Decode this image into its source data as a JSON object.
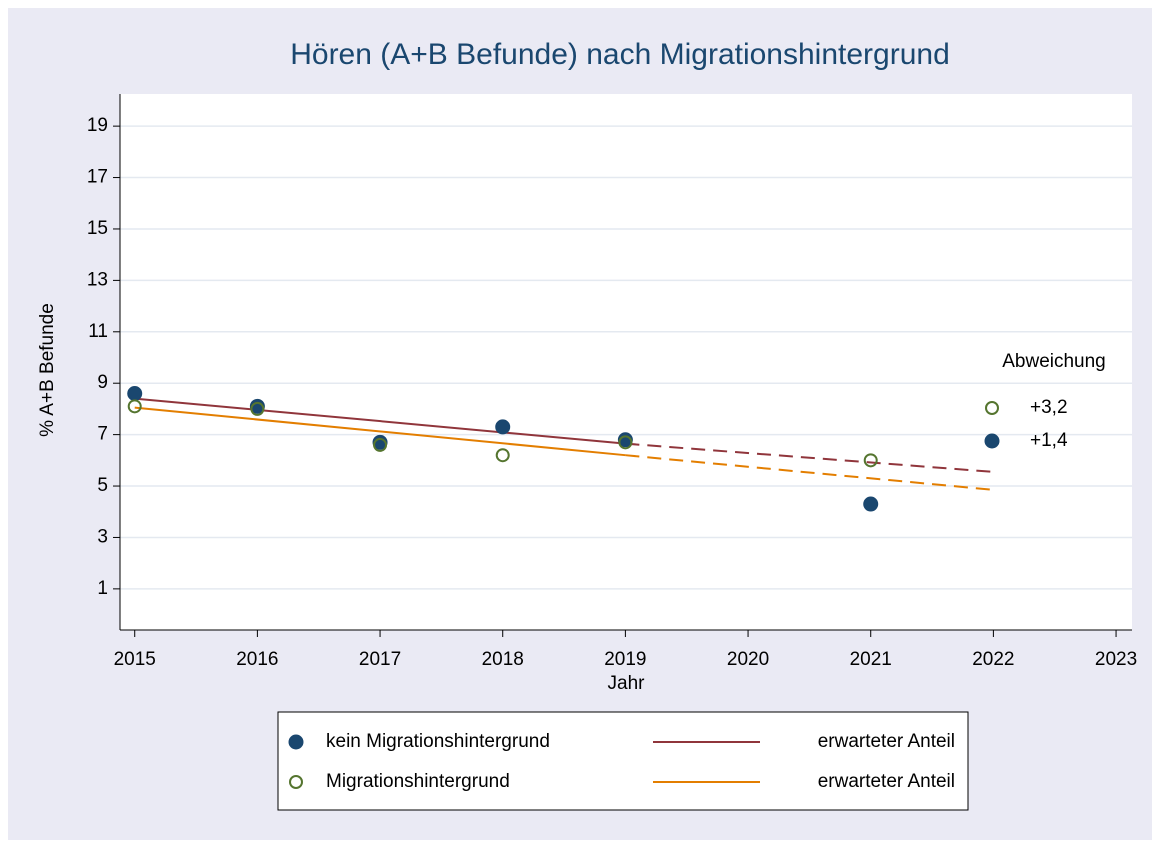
{
  "chart_data": {
    "type": "scatter",
    "title": "Hören (A+B Befunde) nach Migrationshintergrund",
    "x_label": "Jahr",
    "y_label": "% A+B Befunde",
    "x": [
      2015,
      2016,
      2017,
      2018,
      2019,
      2021
    ],
    "series": [
      {
        "name": "kein Migrationshintergrund",
        "color": "#1a476f",
        "marker": "filled",
        "values": [
          8.6,
          8.1,
          6.7,
          7.3,
          6.8,
          4.3
        ]
      },
      {
        "name": "Migrationshintergrund",
        "color": "#55752f",
        "marker": "hollow",
        "values": [
          8.1,
          8.0,
          6.6,
          6.2,
          6.7,
          6.0
        ]
      }
    ],
    "fit_lines": [
      {
        "name": "erwarteter Anteil",
        "color": "#90353b",
        "fit": {
          "x": [
            2015,
            2019
          ],
          "values": [
            8.4,
            6.65
          ]
        },
        "projection": {
          "x": [
            2019,
            2022
          ],
          "values": [
            6.65,
            5.55
          ]
        }
      },
      {
        "name": "erwarteter Anteil",
        "color": "#e37e00",
        "fit": {
          "x": [
            2015,
            2019
          ],
          "values": [
            8.05,
            6.2
          ]
        },
        "projection": {
          "x": [
            2019,
            2022
          ],
          "values": [
            6.2,
            4.85
          ]
        }
      }
    ],
    "annotation_legend": {
      "title": "Abweichung",
      "entries": [
        {
          "label": "+3,2",
          "marker": "hollow",
          "color": "#55752f"
        },
        {
          "label": "+1,4",
          "marker": "filled",
          "color": "#1a476f"
        }
      ]
    },
    "xlim": [
      2014.88,
      2023.13
    ],
    "ylim": [
      -0.6,
      20.25
    ],
    "xticks": [
      2015,
      2016,
      2017,
      2018,
      2019,
      2020,
      2021,
      2022,
      2023
    ],
    "yticks": [
      1,
      3,
      5,
      7,
      9,
      11,
      13,
      15,
      17,
      19
    ],
    "grid": true
  }
}
